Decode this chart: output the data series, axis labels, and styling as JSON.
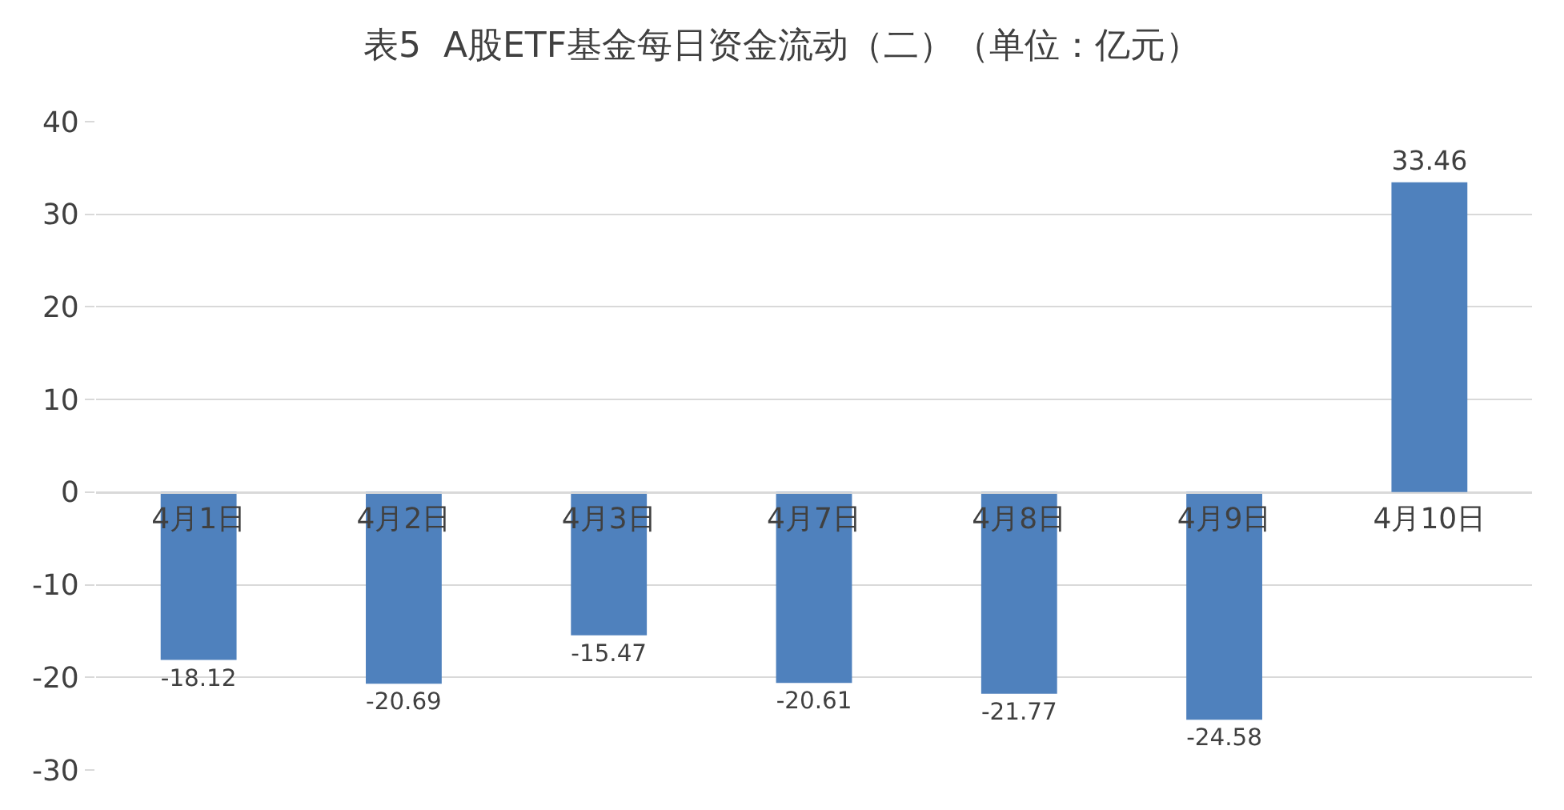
{
  "chart_data": {
    "type": "bar",
    "title": "表5  A股ETF基金每日资金流动（二）（单位：亿元）",
    "categories": [
      "4月1日",
      "4月2日",
      "4月3日",
      "4月7日",
      "4月8日",
      "4月9日",
      "4月10日"
    ],
    "values": [
      -18.12,
      -20.69,
      -15.47,
      -20.61,
      -21.77,
      -24.58,
      33.46
    ],
    "color": "#4f81bd",
    "ylim": [
      -30,
      40
    ],
    "yticks": [
      -30,
      -20,
      -10,
      0,
      10,
      20,
      30,
      40
    ],
    "grid": "y",
    "data_labels": true
  }
}
